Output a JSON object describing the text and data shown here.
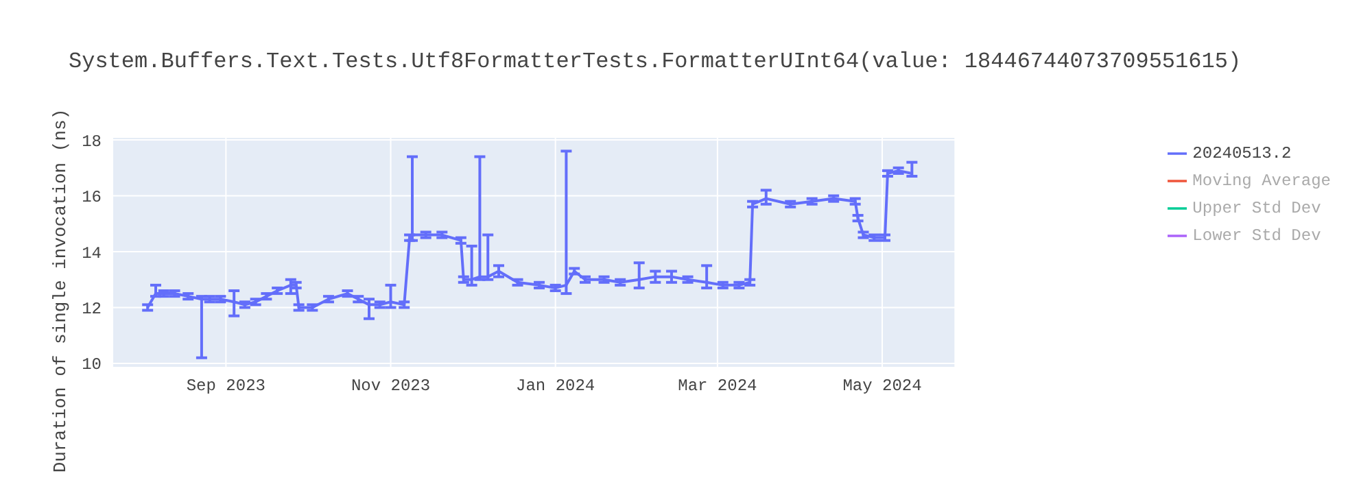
{
  "chart_data": {
    "type": "line",
    "title": "System.Buffers.Text.Tests.Utf8FormatterTests.FormatterUInt64(value: 18446744073709551615)",
    "ylabel": "Duration of single invocation (ns)",
    "x": [
      "2023-08-03",
      "2023-08-06",
      "2023-08-09",
      "2023-08-13",
      "2023-08-18",
      "2023-08-23",
      "2023-08-26",
      "2023-08-30",
      "2023-09-04",
      "2023-09-08",
      "2023-09-12",
      "2023-09-16",
      "2023-09-20",
      "2023-09-25",
      "2023-09-27",
      "2023-09-28",
      "2023-10-03",
      "2023-10-09",
      "2023-10-16",
      "2023-10-20",
      "2023-10-24",
      "2023-10-28",
      "2023-11-01",
      "2023-11-06",
      "2023-11-08",
      "2023-11-09",
      "2023-11-14",
      "2023-11-20",
      "2023-11-27",
      "2023-11-28",
      "2023-12-01",
      "2023-12-04",
      "2023-12-07",
      "2023-12-11",
      "2023-12-18",
      "2023-12-26",
      "2024-01-01",
      "2024-01-05",
      "2024-01-08",
      "2024-01-12",
      "2024-01-19",
      "2024-01-25",
      "2024-02-01",
      "2024-02-07",
      "2024-02-13",
      "2024-02-19",
      "2024-02-26",
      "2024-03-03",
      "2024-03-09",
      "2024-03-13",
      "2024-03-14",
      "2024-03-19",
      "2024-03-28",
      "2024-04-05",
      "2024-04-13",
      "2024-04-21",
      "2024-04-22",
      "2024-04-24",
      "2024-04-28",
      "2024-05-02",
      "2024-05-03",
      "2024-05-07",
      "2024-05-12"
    ],
    "series": [
      {
        "name": "20240513.2",
        "color": "#636efa",
        "values": [
          12.0,
          12.5,
          12.5,
          12.5,
          12.4,
          12.3,
          12.3,
          12.3,
          12.2,
          12.1,
          12.2,
          12.4,
          12.6,
          12.8,
          12.8,
          12.0,
          12.0,
          12.3,
          12.5,
          12.3,
          12.1,
          12.1,
          12.2,
          12.1,
          14.5,
          14.6,
          14.6,
          14.6,
          14.4,
          13.0,
          13.0,
          13.1,
          13.1,
          13.3,
          12.9,
          12.8,
          12.7,
          12.8,
          13.3,
          13.0,
          13.0,
          12.9,
          13.0,
          13.1,
          13.1,
          13.0,
          12.9,
          12.8,
          12.8,
          12.9,
          15.7,
          15.9,
          15.7,
          15.8,
          15.9,
          15.8,
          15.2,
          14.6,
          14.5,
          14.5,
          16.8,
          16.9,
          16.8
        ],
        "errors": [
          0.1,
          [
            12.4,
            12.8
          ],
          0.1,
          0.1,
          0.1,
          [
            10.2,
            12.4
          ],
          0.1,
          0.1,
          [
            11.7,
            12.6
          ],
          0.1,
          0.1,
          0.1,
          0.1,
          [
            12.5,
            13.0
          ],
          0.1,
          0.1,
          0.1,
          0.1,
          0.1,
          0.1,
          [
            11.6,
            12.3
          ],
          0.1,
          [
            12.0,
            12.8
          ],
          0.1,
          0.1,
          [
            14.4,
            17.4
          ],
          0.1,
          0.1,
          0.1,
          0.1,
          [
            12.8,
            14.2
          ],
          [
            13.0,
            17.4
          ],
          [
            13.0,
            14.6
          ],
          0.2,
          0.1,
          0.1,
          0.1,
          [
            12.5,
            17.6
          ],
          0.1,
          0.1,
          0.1,
          0.1,
          [
            12.7,
            13.6
          ],
          0.2,
          0.2,
          0.1,
          [
            12.7,
            13.5
          ],
          0.1,
          0.1,
          0.1,
          0.1,
          [
            15.7,
            16.2
          ],
          0.1,
          0.1,
          0.1,
          0.1,
          0.1,
          0.1,
          0.1,
          0.1,
          0.1,
          0.1,
          [
            16.7,
            17.2
          ]
        ]
      },
      {
        "name": "Moving Average",
        "color": "#ef553b",
        "values": [
          null,
          null,
          null,
          null,
          null,
          null,
          null,
          null,
          null,
          null,
          null,
          null,
          null,
          null,
          null,
          null,
          null,
          null,
          null,
          null,
          null,
          null,
          null,
          null,
          null,
          null,
          null,
          null,
          null,
          null,
          null,
          null,
          null,
          null,
          null,
          null,
          null,
          null,
          null,
          null,
          null,
          null,
          null,
          null,
          null,
          null,
          null,
          null,
          null,
          null,
          null,
          null,
          null,
          null,
          null,
          null,
          null,
          null,
          null,
          null,
          null,
          null,
          null
        ]
      },
      {
        "name": "Upper Std Dev",
        "color": "#00cc96",
        "values": [
          null,
          null,
          null,
          null,
          null,
          null,
          null,
          null,
          null,
          null,
          null,
          null,
          null,
          null,
          null,
          null,
          null,
          null,
          null,
          null,
          null,
          null,
          null,
          null,
          null,
          null,
          null,
          null,
          null,
          null,
          null,
          null,
          null,
          null,
          null,
          null,
          null,
          null,
          null,
          null,
          null,
          null,
          null,
          null,
          null,
          null,
          null,
          null,
          null,
          null,
          null,
          null,
          null,
          null,
          null,
          null,
          null,
          null,
          null,
          null,
          null,
          null,
          null
        ]
      },
      {
        "name": "Lower Std Dev",
        "color": "#ab63fa",
        "values": [
          null,
          null,
          null,
          null,
          null,
          null,
          null,
          null,
          null,
          null,
          null,
          null,
          null,
          null,
          null,
          null,
          null,
          null,
          null,
          null,
          null,
          null,
          null,
          null,
          null,
          null,
          null,
          null,
          null,
          null,
          null,
          null,
          null,
          null,
          null,
          null,
          null,
          null,
          null,
          null,
          null,
          null,
          null,
          null,
          null,
          null,
          null,
          null,
          null,
          null,
          null,
          null,
          null,
          null,
          null,
          null,
          null,
          null,
          null,
          null,
          null,
          null,
          null
        ]
      }
    ],
    "xlim": [
      "2023-07-21",
      "2024-05-28"
    ],
    "xticks": [
      {
        "value": "2023-09-01",
        "label": "Sep 2023"
      },
      {
        "value": "2023-11-01",
        "label": "Nov 2023"
      },
      {
        "value": "2024-01-01",
        "label": "Jan 2024"
      },
      {
        "value": "2024-03-01",
        "label": "Mar 2024"
      },
      {
        "value": "2024-05-01",
        "label": "May 2024"
      }
    ],
    "ylim": [
      9.85,
      18.1
    ],
    "yticks": [
      10,
      12,
      14,
      16,
      18
    ],
    "grid": true,
    "legend": "right",
    "marker": "none",
    "line_style": "solid"
  }
}
